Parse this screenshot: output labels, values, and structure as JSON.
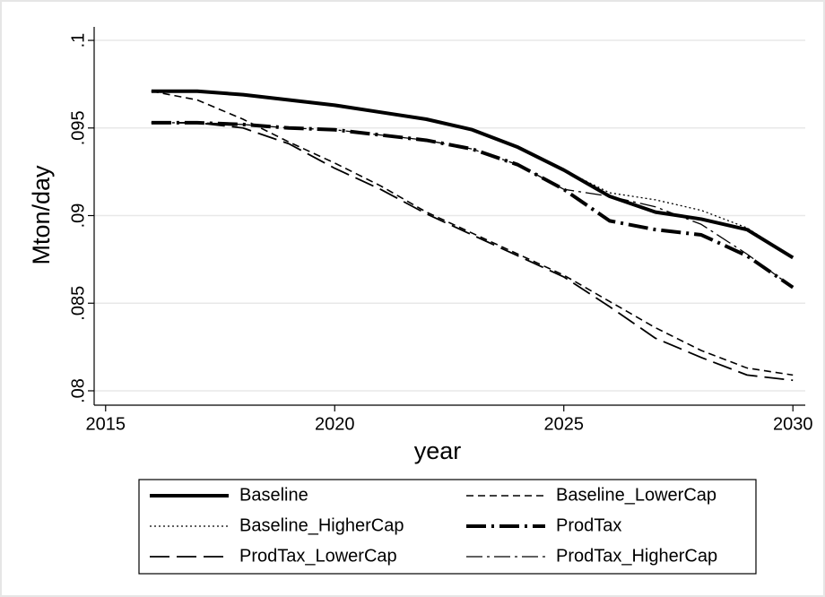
{
  "chart_data": {
    "type": "line",
    "x_label": "year",
    "y_label": "Mton/day",
    "x": [
      2016,
      2017,
      2018,
      2019,
      2020,
      2021,
      2022,
      2023,
      2024,
      2025,
      2026,
      2027,
      2028,
      2029,
      2030
    ],
    "series": [
      {
        "name": "Baseline",
        "color": "#000000",
        "style": "solid-thick",
        "values": [
          0.0971,
          0.0971,
          0.0969,
          0.0966,
          0.0963,
          0.0959,
          0.0955,
          0.0949,
          0.0939,
          0.0926,
          0.0911,
          0.0902,
          0.0898,
          0.0892,
          0.0876
        ]
      },
      {
        "name": "Baseline_LowerCap",
        "color": "#000000",
        "style": "dash",
        "values": [
          0.0971,
          0.0966,
          0.0955,
          0.0942,
          0.093,
          0.0917,
          0.0902,
          0.089,
          0.0878,
          0.0866,
          0.0851,
          0.0836,
          0.0823,
          0.0813,
          0.0809
        ]
      },
      {
        "name": "Baseline_HigherCap",
        "color": "#000000",
        "style": "dot",
        "values": [
          0.0971,
          0.0971,
          0.0969,
          0.0966,
          0.0963,
          0.0959,
          0.0955,
          0.0949,
          0.0939,
          0.0926,
          0.0913,
          0.0909,
          0.0903,
          0.0893,
          0.0876
        ]
      },
      {
        "name": "ProdTax",
        "color": "#000000",
        "style": "longdash-dot-thick",
        "values": [
          0.0953,
          0.0953,
          0.0952,
          0.095,
          0.0949,
          0.0946,
          0.0943,
          0.0938,
          0.0929,
          0.0915,
          0.0897,
          0.0892,
          0.0889,
          0.0877,
          0.0859
        ]
      },
      {
        "name": "ProdTax_LowerCap",
        "color": "#000000",
        "style": "longdash",
        "values": [
          0.0953,
          0.0953,
          0.095,
          0.0941,
          0.0927,
          0.0915,
          0.0901,
          0.0889,
          0.0877,
          0.0865,
          0.0848,
          0.083,
          0.0819,
          0.0809,
          0.0806
        ]
      },
      {
        "name": "ProdTax_HigherCap",
        "color": "#000000",
        "style": "longdash-dot",
        "values": [
          0.0953,
          0.0953,
          0.0952,
          0.095,
          0.0949,
          0.0946,
          0.0943,
          0.0938,
          0.0929,
          0.0915,
          0.0911,
          0.0905,
          0.0895,
          0.0878,
          0.0859
        ]
      }
    ],
    "xlim": [
      2014.75,
      2030.27
    ],
    "xticks": [
      2015,
      2020,
      2025,
      2030
    ],
    "ylim": [
      0.07918,
      0.10077
    ],
    "yticks": [
      {
        "value": 0.08,
        "label": ".08"
      },
      {
        "value": 0.085,
        "label": ".085"
      },
      {
        "value": 0.09,
        "label": ".09"
      },
      {
        "value": 0.095,
        "label": ".095"
      },
      {
        "value": 0.1,
        "label": ".1"
      }
    ],
    "grid": true,
    "legend": "bottom"
  }
}
